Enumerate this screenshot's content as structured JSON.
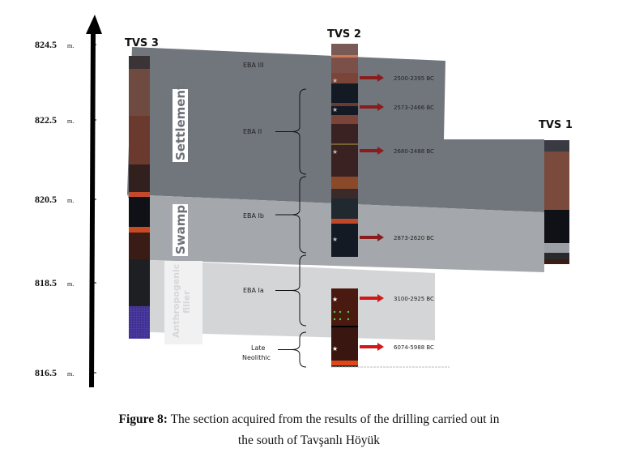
{
  "axis": {
    "ticks": [
      {
        "value": "824.5",
        "unit": "m."
      },
      {
        "value": "822.5",
        "unit": "m."
      },
      {
        "value": "820.5",
        "unit": "m."
      },
      {
        "value": "818.5",
        "unit": "m."
      },
      {
        "value": "816.5",
        "unit": "m."
      }
    ]
  },
  "cores": {
    "tvs3": "TVS 3",
    "tvs2": "TVS 2",
    "tvs1": "TVS 1"
  },
  "zones": {
    "settlement": "Settlement",
    "swamp": "Swamp",
    "anthropogenic_1": "Anthropogenic",
    "anthropogenic_2": "filler"
  },
  "periods": {
    "eba3": "EBA III",
    "eba2": "EBA II",
    "eba1b": "EBA Ib",
    "eba1a": "EBA Ia",
    "late_neolithic_1": "Late",
    "late_neolithic_2": "Neolithic"
  },
  "dates": [
    "2500-2395 BC",
    "2573-2466 BC",
    "2680-2488 BC",
    "2873-2620 BC",
    "3100-2925 BC",
    "6074-5988 BC"
  ],
  "colors": {
    "settlement_band": "#71767d",
    "swamp_band": "#a4a7ab",
    "filler_band": "#d4d5d7",
    "arrow_dark": "#8b1c1c",
    "arrow_red": "#d01818"
  },
  "caption": {
    "label": "Figure 8:",
    "line1": "The section acquired from the results of the drilling carried out in",
    "line2": "the south of Tavşanlı Höyük"
  }
}
